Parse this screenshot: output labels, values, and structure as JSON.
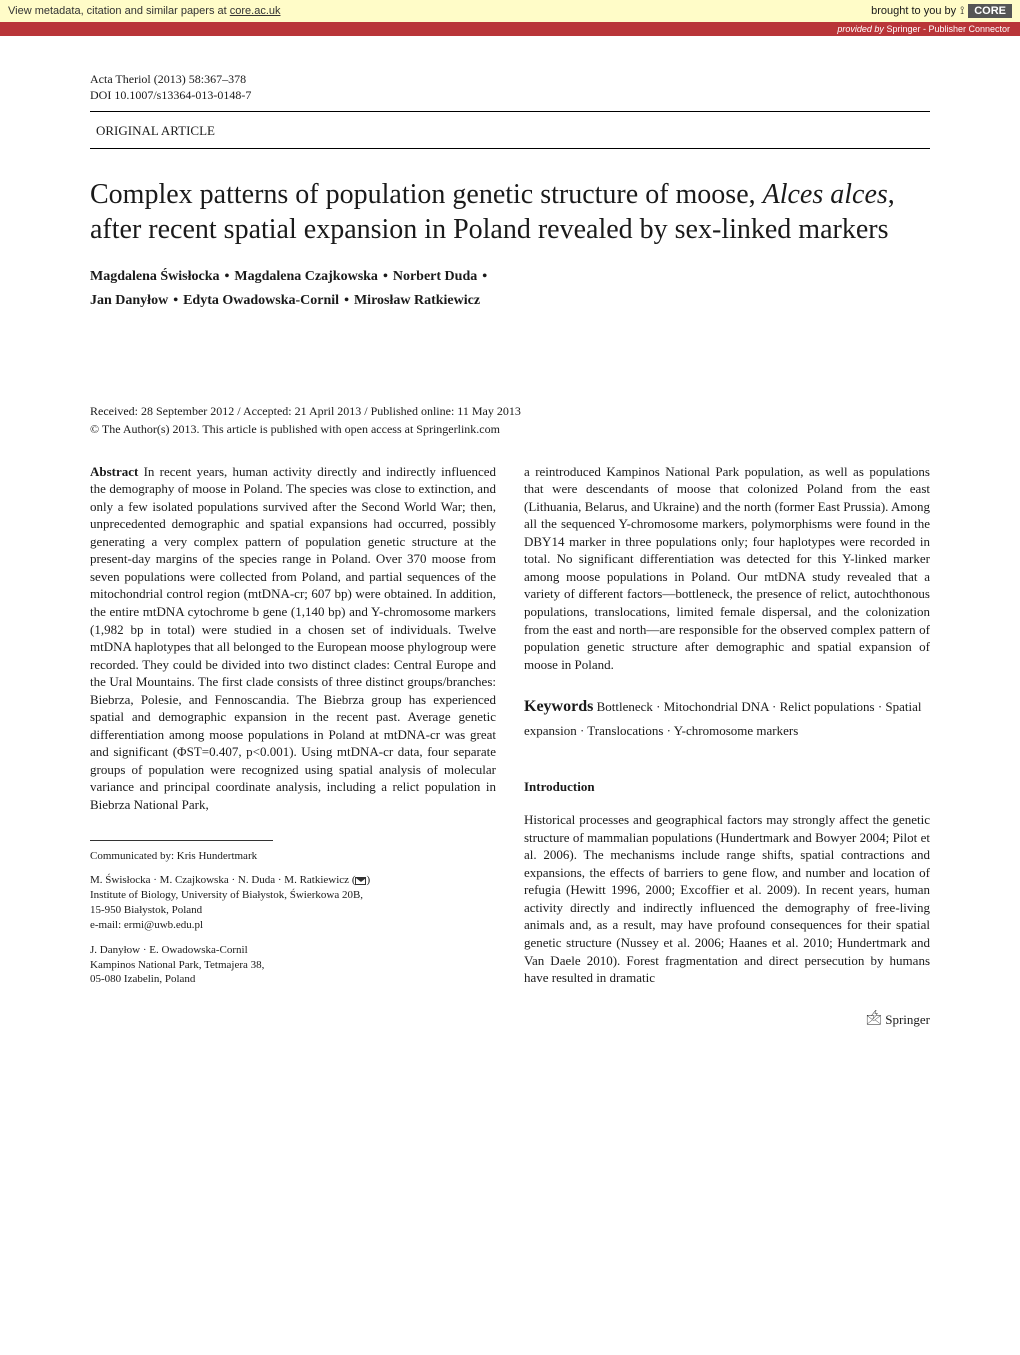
{
  "banner": {
    "left_pre": "View metadata, citation and similar papers at ",
    "left_link": "core.ac.uk",
    "right_text": "brought to you by",
    "core_label": "CORE"
  },
  "provider": {
    "label": "provided by ",
    "name": "Springer - Publisher Connector"
  },
  "journal": {
    "citation": "Acta Theriol (2013) 58:367–378",
    "doi": "DOI 10.1007/s13364-013-0148-7"
  },
  "article_type": "ORIGINAL ARTICLE",
  "title_pre": "Complex patterns of population genetic structure of moose, ",
  "title_species": "Alces alces",
  "title_post": ", after recent spatial expansion in Poland revealed by sex-linked markers",
  "authors": {
    "a1": "Magdalena Świsłocka",
    "a2": "Magdalena Czajkowska",
    "a3": "Norbert Duda",
    "a4": "Jan Danyłow",
    "a5": "Edyta Owadowska-Cornil",
    "a6": "Mirosław Ratkiewicz"
  },
  "dates": "Received: 28 September 2012 / Accepted: 21 April 2013 / Published online: 11 May 2013",
  "copyright": "© The Author(s) 2013. This article is published with open access at Springerlink.com",
  "abstract": {
    "head": "Abstract",
    "left": "  In recent years, human activity directly and indirectly influenced the demography of moose in Poland. The species was close to extinction, and only a few isolated populations survived after the Second World War; then, unprecedented demographic and spatial expansions had occurred, possibly generating a very complex pattern of population genetic structure at the present-day margins of the species range in Poland. Over 370 moose from seven populations were collected from Poland, and partial sequences of the mitochondrial control region (mtDNA-cr; 607 bp) were obtained. In addition, the entire mtDNA cytochrome b gene (1,140 bp) and Y-chromosome markers (1,982 bp in total) were studied in a chosen set of individuals. Twelve mtDNA haplotypes that all belonged to the European moose phylogroup were recorded. They could be divided into two distinct clades: Central Europe and the Ural Mountains. The first clade consists of three distinct groups/branches: Biebrza, Polesie, and Fennoscandia. The Biebrza group has experienced spatial and demographic expansion in the recent past. Average genetic differentiation among moose populations in Poland at mtDNA-cr was great and significant (ΦST=0.407, p<0.001). Using mtDNA-cr data, four separate groups of population were recognized using spatial analysis of molecular variance and principal coordinate analysis, including a relict population in Biebrza National Park,",
    "right": "a reintroduced Kampinos National Park population, as well as populations that were descendants of moose that colonized Poland from the east (Lithuania, Belarus, and Ukraine) and the north (former East Prussia). Among all the sequenced Y-chromosome markers, polymorphisms were found in the DBY14 marker in three populations only; four haplotypes were recorded in total. No significant differentiation was detected for this Y-linked marker among moose populations in Poland. Our mtDNA study revealed that a variety of different factors—bottleneck, the presence of relict, autochthonous populations, translocations, limited female dispersal, and the colonization from the east and north—are responsible for the observed complex pattern of population genetic structure after demographic and spatial expansion of moose in Poland."
  },
  "keywords": {
    "head": "Keywords",
    "body": "  Bottleneck · Mitochondrial DNA · Relict populations · Spatial expansion · Translocations · Y-chromosome markers"
  },
  "introduction": {
    "head": "Introduction",
    "body": "Historical processes and geographical factors may strongly affect the genetic structure of mammalian populations (Hundertmark and Bowyer 2004; Pilot et al. 2006). The mechanisms include range shifts, spatial contractions and expansions, the effects of barriers to gene flow, and number and location of refugia (Hewitt 1996, 2000; Excoffier et al. 2009). In recent years, human activity directly and indirectly influenced the demography of free-living animals and, as a result, may have profound consequences for their spatial genetic structure (Nussey et al. 2006; Haanes et al. 2010; Hundertmark and Van Daele 2010). Forest fragmentation and direct persecution by humans have resulted in dramatic"
  },
  "footnotes": {
    "comm": "Communicated by: Kris Hundertmark",
    "aff1_names": "M. Świsłocka · M. Czajkowska · N. Duda · M. Ratkiewicz (",
    "aff1_close": ")",
    "aff1_line1": "Institute of Biology, University of Białystok, Świerkowa 20B,",
    "aff1_line2": "15-950 Białystok, Poland",
    "aff1_email": "e-mail: ermi@uwb.edu.pl",
    "aff2_names": "J. Danyłow · E. Owadowska-Cornil",
    "aff2_line1": "Kampinos National Park, Tetmajera 38,",
    "aff2_line2": "05-080 Izabelin, Poland"
  },
  "springer": "Springer"
}
